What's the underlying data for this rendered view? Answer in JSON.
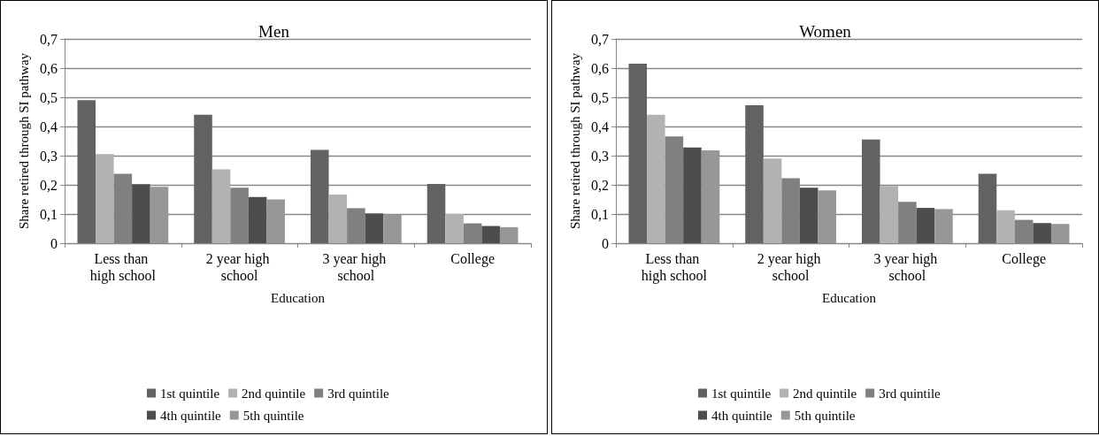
{
  "chart_data": [
    {
      "type": "bar",
      "title": "Men",
      "xlabel": "Education",
      "ylabel": "Share retired through SI pathway",
      "categories": [
        "Less than high school",
        "2 year high school",
        "3 year high school",
        "College"
      ],
      "series": [
        {
          "name": "1st quintile",
          "color": "#626262",
          "values": [
            0.49,
            0.44,
            0.32,
            0.203
          ]
        },
        {
          "name": "2nd quintile",
          "color": "#b2b2b2",
          "values": [
            0.305,
            0.253,
            0.167,
            0.1
          ]
        },
        {
          "name": "3rd quintile",
          "color": "#808080",
          "values": [
            0.238,
            0.19,
            0.12,
            0.068
          ]
        },
        {
          "name": "4th quintile",
          "color": "#4d4d4d",
          "values": [
            0.202,
            0.158,
            0.102,
            0.059
          ]
        },
        {
          "name": "5th quintile",
          "color": "#979797",
          "values": [
            0.193,
            0.15,
            0.098,
            0.055
          ]
        }
      ],
      "ylim": [
        0,
        0.7
      ],
      "yticks": [
        0,
        {
          "value": 0.1,
          "label": "0,1"
        },
        {
          "value": 0.2,
          "label": "0,2"
        },
        {
          "value": 0.3,
          "label": "0,3"
        },
        {
          "value": 0.4,
          "label": "0,4"
        },
        {
          "value": 0.5,
          "label": "0,5"
        },
        {
          "value": 0.6,
          "label": "0,6"
        },
        {
          "value": 0.7,
          "label": "0,7"
        }
      ],
      "grid": "y",
      "legend": "bottom"
    },
    {
      "type": "bar",
      "title": "Women",
      "xlabel": "Education",
      "ylabel": "Share retired through SI pathway",
      "categories": [
        "Less than high school",
        "2 year high school",
        "3 year high school",
        "College"
      ],
      "series": [
        {
          "name": "1st quintile",
          "color": "#626262",
          "values": [
            0.615,
            0.473,
            0.355,
            0.238
          ]
        },
        {
          "name": "2nd quintile",
          "color": "#b2b2b2",
          "values": [
            0.44,
            0.29,
            0.196,
            0.113
          ]
        },
        {
          "name": "3rd quintile",
          "color": "#808080",
          "values": [
            0.366,
            0.223,
            0.142,
            0.08
          ]
        },
        {
          "name": "4th quintile",
          "color": "#4d4d4d",
          "values": [
            0.328,
            0.19,
            0.121,
            0.069
          ]
        },
        {
          "name": "5th quintile",
          "color": "#979797",
          "values": [
            0.318,
            0.181,
            0.117,
            0.066
          ]
        }
      ],
      "ylim": [
        0,
        0.7
      ],
      "yticks": [
        0,
        {
          "value": 0.1,
          "label": "0,1"
        },
        {
          "value": 0.2,
          "label": "0,2"
        },
        {
          "value": 0.3,
          "label": "0,3"
        },
        {
          "value": 0.4,
          "label": "0,4"
        },
        {
          "value": 0.5,
          "label": "0,5"
        },
        {
          "value": 0.6,
          "label": "0,6"
        },
        {
          "value": 0.7,
          "label": "0,7"
        }
      ],
      "grid": "y",
      "legend": "bottom"
    }
  ]
}
